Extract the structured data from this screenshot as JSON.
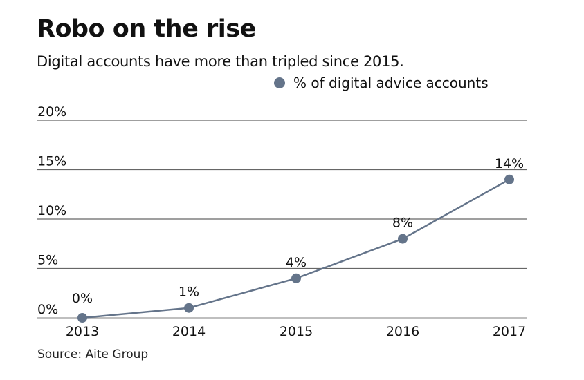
{
  "chart_data": {
    "type": "line",
    "title": "Robo on the rise",
    "subtitle": "Digital accounts have more than tripled since 2015.",
    "categories": [
      "2013",
      "2014",
      "2015",
      "2016",
      "2017"
    ],
    "series": [
      {
        "name": "% of digital advice accounts",
        "values": [
          0,
          1,
          4,
          8,
          14
        ],
        "labels": [
          "0%",
          "1%",
          "4%",
          "8%",
          "14%"
        ],
        "color": "#64748a"
      }
    ],
    "yticks": [
      0,
      5,
      10,
      15,
      20
    ],
    "ytick_labels": [
      "0%",
      "5%",
      "10%",
      "15%",
      "20%"
    ],
    "ylim": [
      0,
      20
    ],
    "grid": true,
    "legend_position": "top-right",
    "source": "Source: Aite Group"
  }
}
